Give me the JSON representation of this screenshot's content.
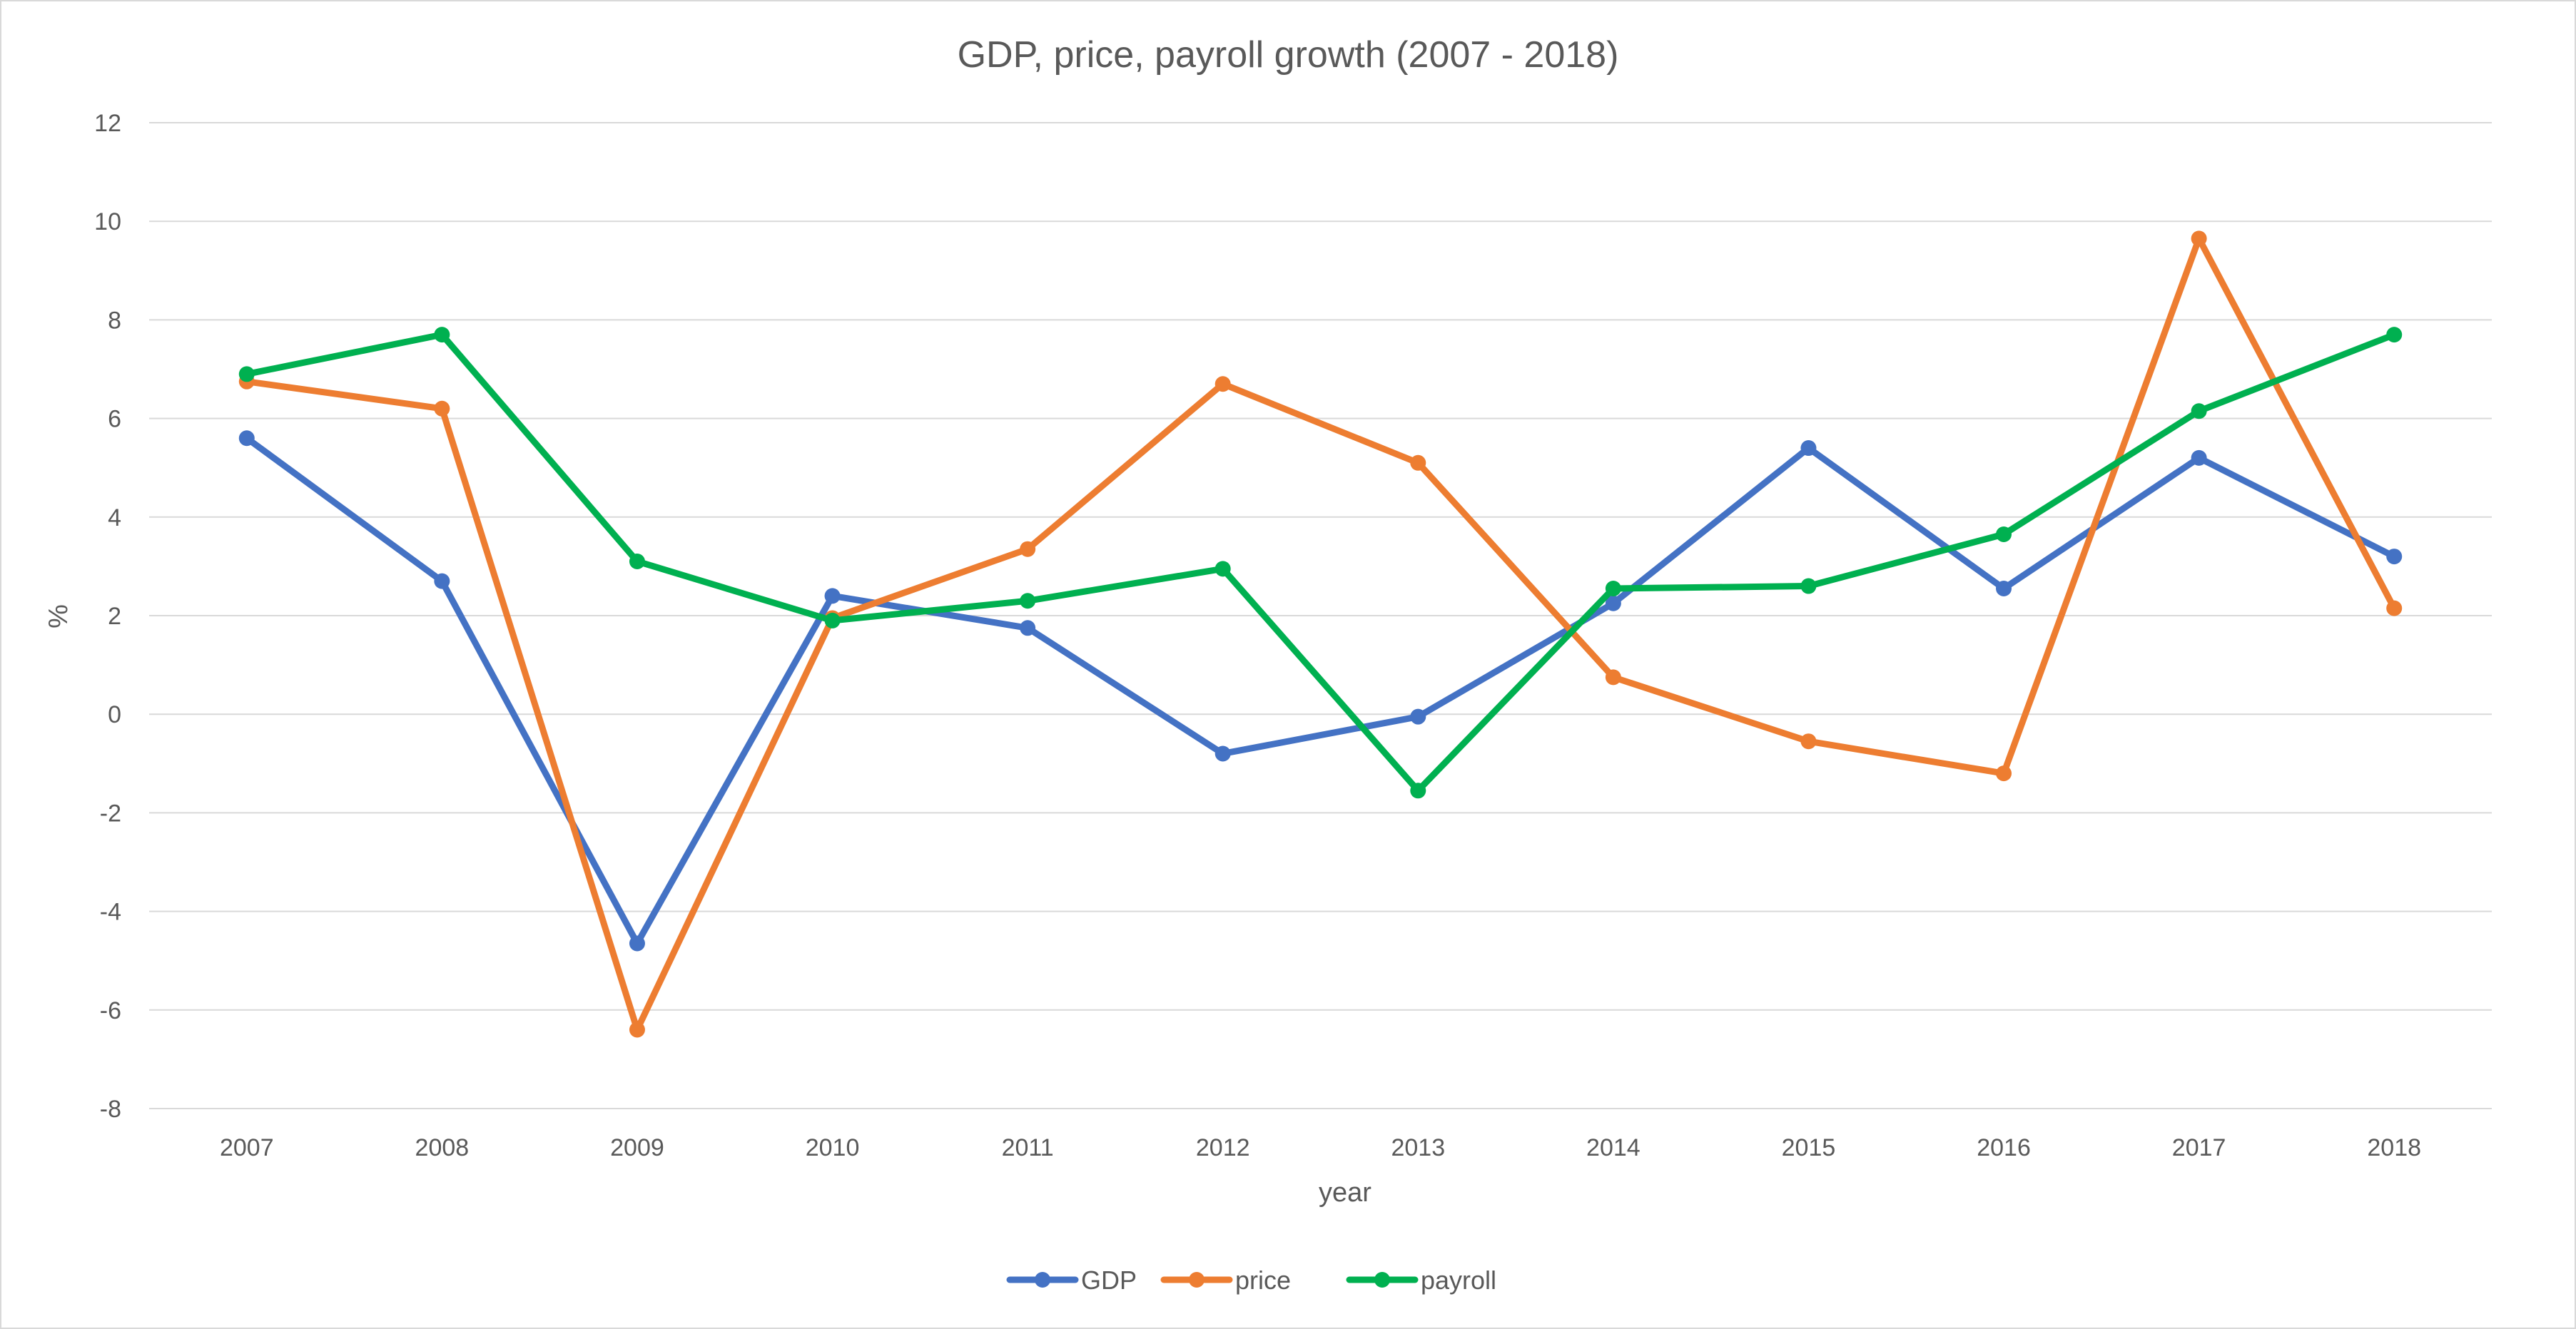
{
  "chart_data": {
    "type": "line",
    "title": "GDP, price, payroll growth (2007 - 2018)",
    "xlabel": "year",
    "ylabel": "%",
    "categories": [
      "2007",
      "2008",
      "2009",
      "2010",
      "2011",
      "2012",
      "2013",
      "2014",
      "2015",
      "2016",
      "2017",
      "2018"
    ],
    "ylim": [
      -8,
      12
    ],
    "yticks": [
      12,
      10,
      8,
      6,
      4,
      2,
      0,
      -2,
      -4,
      -6,
      -8
    ],
    "grid": true,
    "legend_position": "bottom",
    "series": [
      {
        "name": "GDP",
        "color": "#4472C4",
        "values": [
          5.6,
          2.7,
          -4.65,
          2.4,
          1.75,
          -0.8,
          -0.05,
          2.25,
          5.4,
          2.55,
          5.2,
          3.2
        ]
      },
      {
        "name": "price",
        "color": "#ED7D31",
        "values": [
          6.75,
          6.2,
          -6.4,
          1.95,
          3.35,
          6.7,
          5.1,
          0.75,
          -0.55,
          -1.2,
          9.65,
          2.15
        ]
      },
      {
        "name": "payroll",
        "color": "#00B050",
        "values": [
          6.9,
          7.7,
          3.1,
          1.9,
          2.3,
          2.95,
          -1.55,
          2.55,
          2.6,
          3.65,
          6.15,
          7.7
        ]
      }
    ]
  }
}
